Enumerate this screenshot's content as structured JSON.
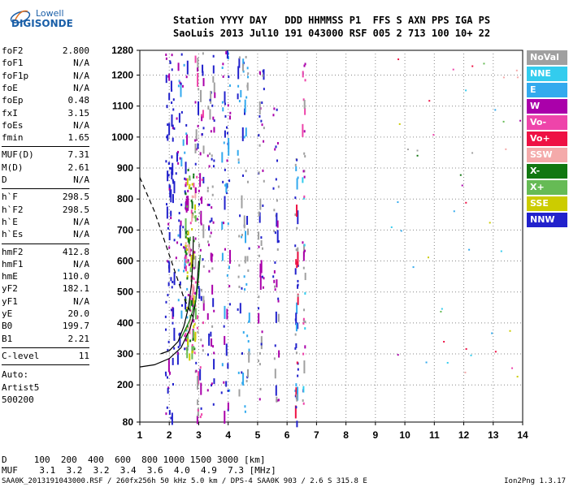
{
  "logo": {
    "line1": "Lowell",
    "line2": "DIGISONDE"
  },
  "header": {
    "line1": "Station YYYY DAY   DDD HHMMSS P1  FFS S AXN PPS IGA PS",
    "line2": "SaoLuis 2013 Jul10 191 043000 RSF 005 2 713 100 10+ 22"
  },
  "params": [
    {
      "k": "foF2",
      "v": "2.800"
    },
    {
      "k": "foF1",
      "v": "N/A"
    },
    {
      "k": "foF1p",
      "v": "N/A"
    },
    {
      "k": "foE",
      "v": "N/A"
    },
    {
      "k": "foEp",
      "v": "0.48"
    },
    {
      "k": "fxI",
      "v": "3.15"
    },
    {
      "k": "foEs",
      "v": "N/A"
    },
    {
      "k": "fmin",
      "v": "1.65"
    },
    {
      "k": "MUF(D)",
      "v": "7.31"
    },
    {
      "k": "M(D)",
      "v": "2.61"
    },
    {
      "k": "D",
      "v": "N/A"
    },
    {
      "k": "h`F",
      "v": "298.5"
    },
    {
      "k": "h`F2",
      "v": "298.5"
    },
    {
      "k": "h`E",
      "v": "N/A"
    },
    {
      "k": "h`Es",
      "v": "N/A"
    },
    {
      "k": "hmF2",
      "v": "412.8"
    },
    {
      "k": "hmF1",
      "v": "N/A"
    },
    {
      "k": "hmE",
      "v": "110.0"
    },
    {
      "k": "yF2",
      "v": "182.1"
    },
    {
      "k": "yF1",
      "v": "N/A"
    },
    {
      "k": "yE",
      "v": "20.0"
    },
    {
      "k": "B0",
      "v": "199.7"
    },
    {
      "k": "B1",
      "v": "2.21"
    },
    {
      "k": "C-level",
      "v": "11"
    }
  ],
  "autoscaling": {
    "line1": "Auto:",
    "line2": "Artist5",
    "line3": "500200"
  },
  "legend": [
    {
      "label": "NoVal",
      "color": "#a0a0a0"
    },
    {
      "label": "NNE",
      "color": "#33ccee"
    },
    {
      "label": "E",
      "color": "#33aaee"
    },
    {
      "label": "W",
      "color": "#aa00aa"
    },
    {
      "label": "Vo-",
      "color": "#ee44aa"
    },
    {
      "label": "Vo+",
      "color": "#ee1144"
    },
    {
      "label": "SSW",
      "color": "#f4aaaa"
    },
    {
      "label": "X-",
      "color": "#117711"
    },
    {
      "label": "X+",
      "color": "#66bb55"
    },
    {
      "label": "SSE",
      "color": "#cccc00"
    },
    {
      "label": "NNW",
      "color": "#2222cc"
    }
  ],
  "chart_data": {
    "type": "scatter",
    "xlabel": "",
    "ylabel": "",
    "xlim": [
      1,
      14
    ],
    "ylim": [
      80,
      1280
    ],
    "x_ticks": [
      1,
      2,
      3,
      4,
      5,
      6,
      7,
      8,
      9,
      10,
      11,
      12,
      13,
      14
    ],
    "y_ticks": [
      80,
      200,
      300,
      400,
      500,
      600,
      700,
      800,
      900,
      1000,
      1100,
      1200,
      1280
    ],
    "grid": "dotted",
    "profile_curve": [
      [
        1.0,
        258
      ],
      [
        1.5,
        265
      ],
      [
        2.0,
        285
      ],
      [
        2.4,
        320
      ],
      [
        2.7,
        380
      ],
      [
        2.8,
        413
      ],
      [
        2.9,
        470
      ],
      [
        2.95,
        530
      ],
      [
        3.0,
        600
      ]
    ],
    "trace_o": [
      [
        1.7,
        300
      ],
      [
        2.0,
        310
      ],
      [
        2.3,
        340
      ],
      [
        2.5,
        390
      ],
      [
        2.65,
        450
      ],
      [
        2.75,
        520
      ],
      [
        2.8,
        600
      ],
      [
        2.82,
        680
      ]
    ],
    "trace_x": [
      [
        2.4,
        350
      ],
      [
        2.7,
        410
      ],
      [
        2.9,
        470
      ],
      [
        3.0,
        550
      ],
      [
        3.05,
        620
      ]
    ],
    "muf_dashed": [
      [
        1.0,
        870
      ],
      [
        1.5,
        760
      ],
      [
        2.0,
        620
      ],
      [
        2.5,
        480
      ],
      [
        2.8,
        420
      ]
    ]
  },
  "footer": {
    "line1": "D     100  200  400  600  800 1000 1500 3000 [km]",
    "line2": "MUF    3.1  3.2  3.2  3.4  3.6  4.0  4.9  7.3 [MHz]"
  },
  "bottom": {
    "file": "SAA0K_2013191043000.RSF / 260fx256h 50 kHz 5.0 km / DPS-4 SAA0K 903 / 2.6 S 315.8 E",
    "version": "Ion2Png 1.3.17"
  }
}
